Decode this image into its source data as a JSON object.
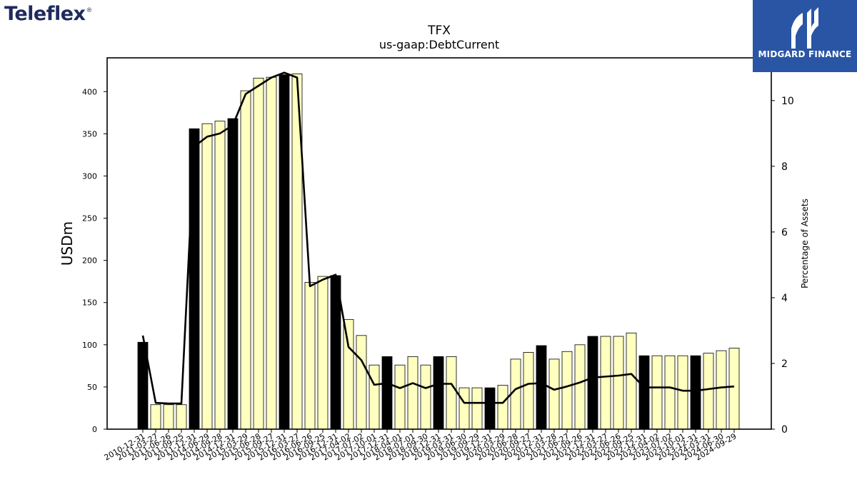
{
  "branding": {
    "company_logo_text": "Teleflex",
    "registered_mark": "®",
    "publisher_logo_text": "MIDGARD FINANCE"
  },
  "chart_data": {
    "type": "bar",
    "title": "TFX",
    "subtitle": "us-gaap:DebtCurrent",
    "ylabel": "USDm",
    "y2label": "Percentage of Assets",
    "ylim": [
      0,
      440
    ],
    "y2lim": [
      0,
      11.3
    ],
    "yticks": [
      0,
      50,
      100,
      150,
      200,
      250,
      300,
      350,
      400
    ],
    "y2ticks": [
      0,
      2,
      4,
      6,
      8,
      10
    ],
    "grid": false,
    "categories": [
      "2010-12-31",
      "2011-03-27",
      "2011-06-26",
      "2011-09-25",
      "2011-12-31",
      "2014-06-29",
      "2014-09-28",
      "2014-12-31",
      "2015-03-29",
      "2015-06-28",
      "2015-09-27",
      "2015-12-31",
      "2016-03-27",
      "2016-06-26",
      "2016-09-25",
      "2016-12-31",
      "2017-04-02",
      "2017-07-02",
      "2017-10-01",
      "2017-12-31",
      "2018-04-01",
      "2018-07-01",
      "2018-09-30",
      "2018-12-31",
      "2019-03-31",
      "2019-06-30",
      "2019-09-29",
      "2019-12-31",
      "2020-03-29",
      "2020-06-28",
      "2020-09-27",
      "2020-12-31",
      "2021-03-28",
      "2021-06-27",
      "2021-09-26",
      "2021-12-31",
      "2022-03-27",
      "2022-06-26",
      "2022-09-25",
      "2022-12-31",
      "2023-04-02",
      "2023-07-02",
      "2023-10-01",
      "2023-12-31",
      "2024-03-31",
      "2024-06-30",
      "2024-09-29"
    ],
    "series": [
      {
        "type": "bar",
        "values": [
          103,
          29,
          29,
          29,
          356,
          362,
          365,
          368,
          401,
          416,
          417,
          420,
          421,
          174,
          181,
          182,
          130,
          111,
          76,
          86,
          76,
          86,
          76,
          86,
          86,
          49,
          49,
          49,
          52,
          83,
          91,
          99,
          83,
          92,
          100,
          110,
          110,
          110,
          114,
          87,
          87,
          87,
          87,
          87,
          90,
          93,
          96
        ],
        "year_end": [
          true,
          false,
          false,
          false,
          true,
          false,
          false,
          true,
          false,
          false,
          false,
          true,
          false,
          false,
          false,
          true,
          false,
          false,
          false,
          true,
          false,
          false,
          false,
          true,
          false,
          false,
          false,
          true,
          false,
          false,
          false,
          true,
          false,
          false,
          false,
          true,
          false,
          false,
          false,
          true,
          false,
          false,
          false,
          true,
          false,
          false,
          false
        ],
        "color_quarter": "#ffffbf",
        "color_year_end": "#000000"
      },
      {
        "type": "line",
        "axis": "right",
        "color": "#000000",
        "values": [
          2.85,
          0.8,
          0.78,
          0.78,
          8.6,
          8.9,
          9.0,
          9.25,
          10.2,
          10.45,
          10.7,
          10.85,
          10.7,
          4.35,
          4.55,
          4.7,
          2.5,
          2.1,
          1.35,
          1.4,
          1.25,
          1.4,
          1.25,
          1.38,
          1.38,
          0.8,
          0.8,
          0.8,
          0.8,
          1.22,
          1.38,
          1.4,
          1.2,
          1.3,
          1.42,
          1.57,
          1.6,
          1.63,
          1.68,
          1.27,
          1.27,
          1.27,
          1.17,
          1.17,
          1.22,
          1.27,
          1.3
        ]
      }
    ]
  }
}
